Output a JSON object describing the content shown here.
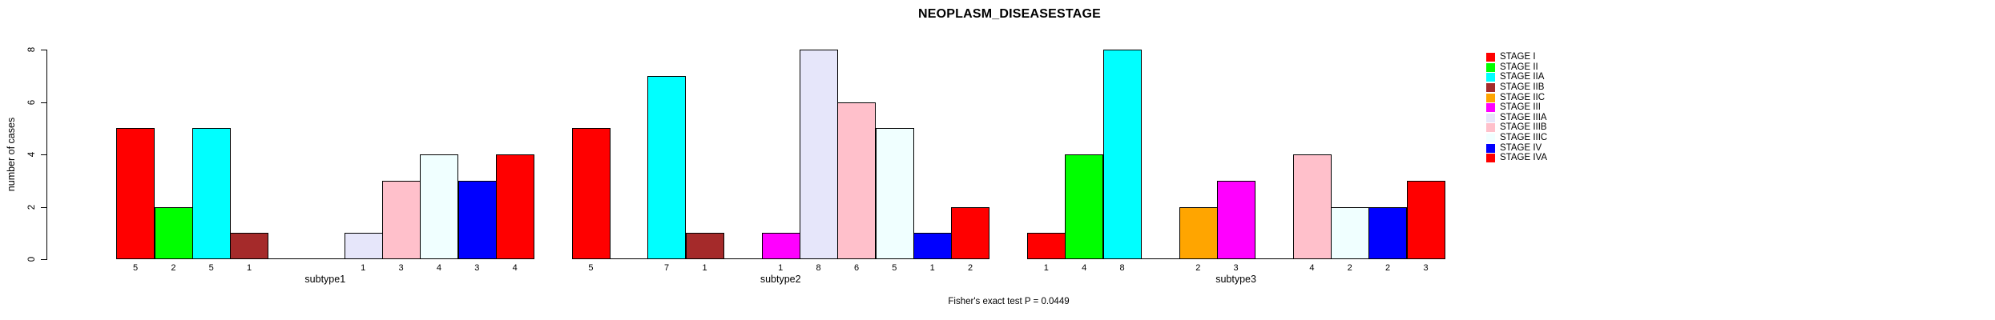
{
  "chart_data": {
    "type": "bar",
    "title": "NEOPLASM_DISEASESTAGE",
    "footer": "Fisher's exact test P = 0.0449",
    "y_axis": {
      "label": "number of cases",
      "ticks": [
        0,
        2,
        4,
        6,
        8
      ],
      "ylim": [
        0,
        8
      ]
    },
    "groups": [
      "subtype1",
      "subtype2",
      "subtype3"
    ],
    "legend_position": "right",
    "grid": false,
    "bar_value_labels": "values shown under each non-zero bar",
    "series": [
      {
        "name": "STAGE I",
        "color": "#FF0000",
        "values": [
          5,
          5,
          1
        ]
      },
      {
        "name": "STAGE II",
        "color": "#00FF00",
        "values": [
          2,
          0,
          4
        ]
      },
      {
        "name": "STAGE IIA",
        "color": "#00FFFF",
        "values": [
          5,
          7,
          8
        ]
      },
      {
        "name": "STAGE IIB",
        "color": "#A52A2A",
        "values": [
          1,
          1,
          0
        ]
      },
      {
        "name": "STAGE IIC",
        "color": "#FFA500",
        "values": [
          0,
          0,
          2
        ]
      },
      {
        "name": "STAGE III",
        "color": "#FF00FF",
        "values": [
          0,
          1,
          3
        ]
      },
      {
        "name": "STAGE IIIA",
        "color": "#E6E6FA",
        "values": [
          1,
          8,
          0
        ]
      },
      {
        "name": "STAGE IIIB",
        "color": "#FFC0CB",
        "values": [
          3,
          6,
          4
        ]
      },
      {
        "name": "STAGE IIIC",
        "color": "#F0FFFF",
        "values": [
          4,
          5,
          2
        ]
      },
      {
        "name": "STAGE IV",
        "color": "#0000FF",
        "values": [
          3,
          1,
          2
        ]
      },
      {
        "name": "STAGE IVA",
        "color": "#FF0000",
        "values": [
          4,
          2,
          3
        ]
      }
    ]
  }
}
